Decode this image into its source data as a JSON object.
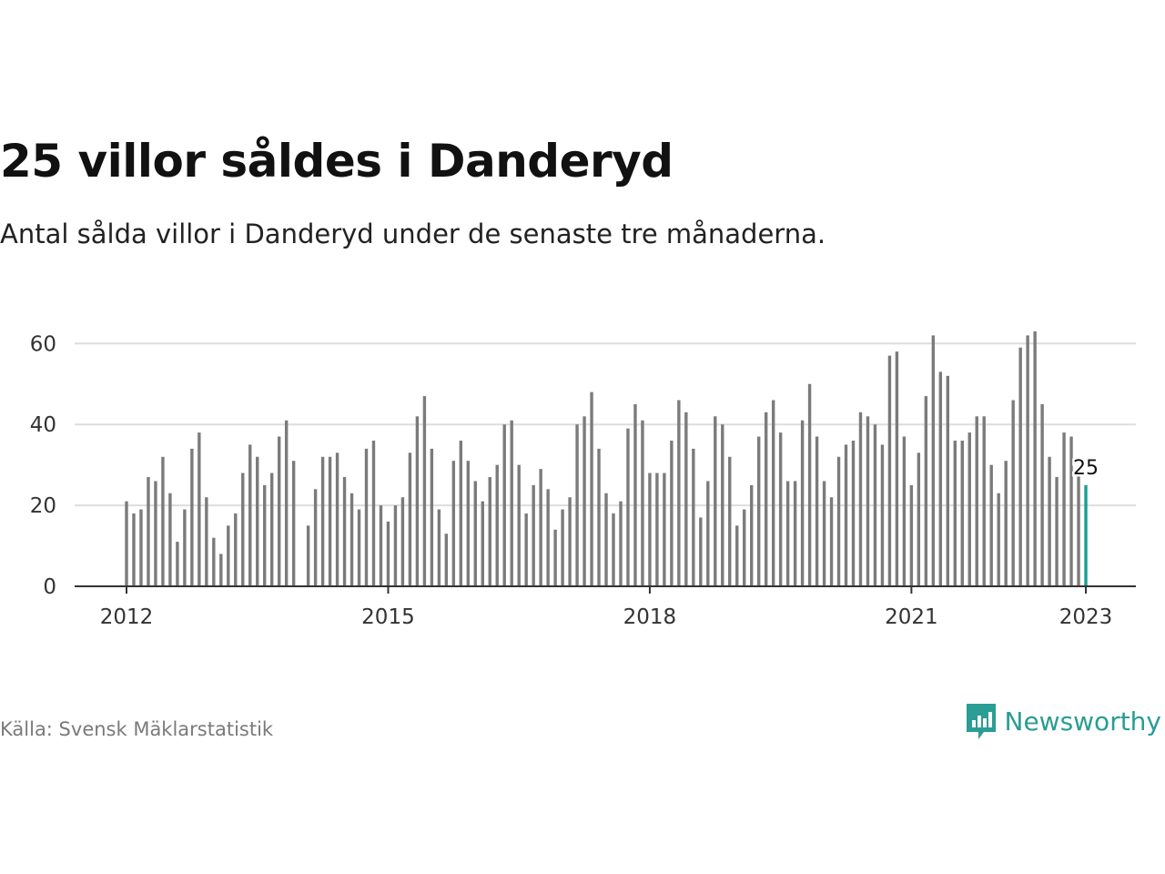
{
  "header": {
    "title": "25 villor såldes i Danderyd",
    "subtitle": "Antal sålda villor i Danderyd under de senaste tre månaderna."
  },
  "footer": {
    "source": "Källa: Svensk Mäklarstatistik",
    "brand": "Newsworthy",
    "brand_icon": "chart-bubble-icon"
  },
  "colors": {
    "bar": "#7b7b7b",
    "highlight": "#1a9e96",
    "grid": "#dddddd",
    "axis": "#333333",
    "brand": "#2a9d94"
  },
  "chart_data": {
    "type": "bar",
    "x_start": "2012-01",
    "x_end": "2023-01",
    "x_tick_labels": [
      "2012",
      "2015",
      "2018",
      "2021",
      "2023"
    ],
    "y_ticks": [
      0,
      20,
      40,
      60
    ],
    "ylim": [
      0,
      63
    ],
    "grid": true,
    "highlight_label": "25",
    "values": [
      21,
      18,
      19,
      27,
      26,
      32,
      23,
      11,
      19,
      34,
      38,
      22,
      12,
      8,
      15,
      18,
      28,
      35,
      32,
      25,
      28,
      37,
      41,
      31,
      null,
      15,
      24,
      32,
      32,
      33,
      27,
      23,
      19,
      34,
      36,
      20,
      16,
      20,
      22,
      33,
      42,
      47,
      34,
      19,
      13,
      31,
      36,
      31,
      26,
      21,
      27,
      30,
      40,
      41,
      30,
      18,
      25,
      29,
      24,
      14,
      19,
      22,
      40,
      42,
      48,
      34,
      23,
      18,
      21,
      39,
      45,
      41,
      28,
      28,
      28,
      36,
      46,
      43,
      34,
      17,
      26,
      42,
      40,
      32,
      15,
      19,
      25,
      37,
      43,
      46,
      38,
      26,
      26,
      41,
      50,
      37,
      26,
      22,
      32,
      35,
      36,
      43,
      42,
      40,
      35,
      57,
      58,
      37,
      25,
      33,
      47,
      62,
      53,
      52,
      36,
      36,
      38,
      42,
      42,
      30,
      23,
      31,
      46,
      59,
      62,
      63,
      45,
      32,
      27,
      38,
      37,
      28,
      25
    ]
  }
}
